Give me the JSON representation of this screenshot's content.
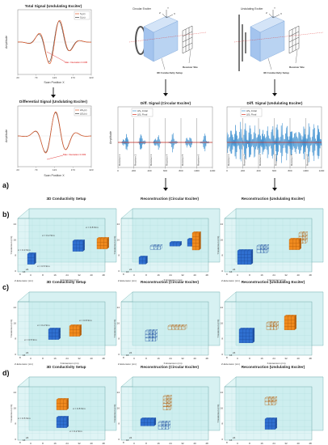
{
  "row_labels": [
    "a)",
    "b)",
    "c)",
    "d)"
  ],
  "top_plots": {
    "total": {
      "title": "Total Signal (Undulating Exciter)",
      "ylabel": "Amplitude",
      "xlabel": "Scan Position X",
      "xticks": [
        "23",
        "73",
        "123",
        "173",
        "223"
      ],
      "legend": [
        "S₁(x)",
        "S₂(x)"
      ],
      "annotation": "Max. Deviation 0.045"
    },
    "differential": {
      "title": "Differential Signal (Undulating Exciter)",
      "ylabel": "Amplitude",
      "xlabel": "Scan Position X",
      "xticks": [
        "23",
        "73",
        "123",
        "173",
        "223"
      ],
      "legend": [
        "ΔS₁(x)",
        "ΔS₂(x)"
      ],
      "annotation": "Max. Deviation 0.003"
    },
    "diff_circular": {
      "title": "Diff. Signal (Circular Exciter)",
      "ylabel": "Amplitude",
      "xticks": [
        "0",
        "200",
        "400",
        "600",
        "800",
        "1000",
        "1200"
      ],
      "legend": [
        "ΔS₁ Initial",
        "ΔS₁ Final"
      ],
      "receivers": [
        "Receiver 1",
        "Receiver 2",
        "Receiver 3",
        "Receiver 4",
        "Receiver 5",
        "Receiver 6"
      ]
    },
    "diff_undulating": {
      "title": "Diff. Signal (Undulating Exciter)",
      "xticks": [
        "0",
        "200",
        "400",
        "600",
        "800",
        "1000",
        "1200"
      ],
      "legend": [
        "ΔS₁ Initial",
        "ΔS₁ Final"
      ],
      "receivers": [
        "Receiver 1",
        "Receiver 2",
        "Receiver 3",
        "Receiver 4",
        "Receiver 5",
        "Receiver 6"
      ]
    }
  },
  "setup_diagrams": {
    "circular": {
      "exciter": "Circular Exciter",
      "setup": "3D Conductivity Setup",
      "receiver": "Receiver Site"
    },
    "undulating": {
      "exciter": "Undulating Exciter",
      "setup": "3D Conductivity Setup",
      "receiver": "Receiver Site"
    },
    "axes": [
      "X",
      "Y",
      "Z"
    ]
  },
  "panel_titles": {
    "setup": "3D Conductivity Setup",
    "circ": "Reconstruction (Circular Exciter)",
    "und": "Reconstruction (Undulating Exciter)"
  },
  "axes3d": {
    "ylabel": "Y-Extension (cm)",
    "xlabel": "X-Extension (cm)",
    "zlabel": "Z-Extension (cm)",
    "yticks": [
      "0",
      "8",
      "16",
      "24"
    ],
    "xticks": [
      "0",
      "8",
      "16",
      "24",
      "32",
      "40",
      "48"
    ],
    "zticks": [
      "8",
      "16",
      "24"
    ]
  },
  "conductivity_labels": {
    "b": [
      "σ = 0.2 S/m",
      "σ = 0.8 S/m",
      "σ = 0.3 S/m",
      "σ = 0.5 S/m"
    ],
    "c": [
      "σ = 0.2 S/m",
      "σ = 0.8 S/m",
      "σ = 0.5 S/m"
    ],
    "d": [
      "σ = 0.8 S/m",
      "σ = 0.5 S/m",
      "σ = 0.2 S/m"
    ]
  },
  "colors": {
    "blue": "#2f6fd0",
    "orange": "#f08a1e",
    "red": "#d62a1e",
    "box": "#cfeff0"
  }
}
